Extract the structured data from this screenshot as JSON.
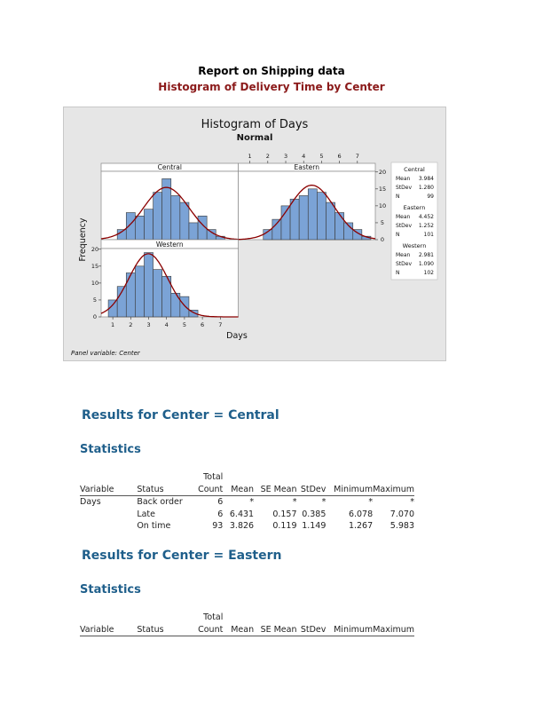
{
  "report": {
    "title": "Report on Shipping data",
    "subtitle": "Histogram of Delivery Time by Center"
  },
  "chart_data": {
    "type": "bar",
    "title": "Histogram of Days",
    "subtitle": "Normal",
    "xlabel": "Days",
    "ylabel": "Frequency",
    "footnote": "Panel variable: Center",
    "xlim": [
      0.35,
      8.0
    ],
    "ylim": [
      0,
      20.2
    ],
    "bin_width": 0.5,
    "xticks": [
      1,
      2,
      3,
      4,
      5,
      6,
      7
    ],
    "yticks": [
      0,
      5,
      10,
      15,
      20
    ],
    "panels": [
      {
        "name": "Central",
        "mean": 3.984,
        "stdev": 1.28,
        "n": 99,
        "mean_label": "3.984",
        "stdev_label": "1.280",
        "n_label": "99",
        "bin_centers": [
          1.5,
          2,
          2.5,
          3,
          3.5,
          4,
          4.5,
          5,
          5.5,
          6,
          6.5,
          7
        ],
        "counts": [
          3,
          8,
          7,
          9,
          14,
          18,
          13,
          11,
          5,
          7,
          3,
          1
        ]
      },
      {
        "name": "Eastern",
        "mean": 4.452,
        "stdev": 1.252,
        "n": 101,
        "mean_label": "4.452",
        "stdev_label": "1.252",
        "n_label": "101",
        "bin_centers": [
          2,
          2.5,
          3,
          3.5,
          4,
          4.5,
          5,
          5.5,
          6,
          6.5,
          7,
          7.5
        ],
        "counts": [
          3,
          6,
          10,
          12,
          13,
          15,
          14,
          11,
          8,
          5,
          3,
          1
        ]
      },
      {
        "name": "Western",
        "mean": 2.981,
        "stdev": 1.09,
        "n": 102,
        "mean_label": "2.981",
        "stdev_label": "1.090",
        "n_label": "102",
        "bin_centers": [
          1,
          1.5,
          2,
          2.5,
          3,
          3.5,
          4,
          4.5,
          5,
          5.5
        ],
        "counts": [
          5,
          9,
          13,
          15,
          19,
          14,
          12,
          7,
          6,
          2
        ]
      }
    ],
    "legend_labels": {
      "mean": "Mean",
      "stdev": "StDev",
      "n": "N"
    },
    "colors": {
      "bar": "#7ba3d6",
      "curve": "#8b0000",
      "bar_edge": "#3a3a3a"
    }
  },
  "sections": [
    {
      "heading": "Results for Center = Central",
      "subheading": "Statistics",
      "columns_top": [
        "",
        "",
        "Total",
        "",
        "",
        "",
        "",
        ""
      ],
      "columns": [
        "Variable",
        "Status",
        "Count",
        "Mean",
        "SE Mean",
        "StDev",
        "Minimum",
        "Maximum"
      ],
      "rows": [
        [
          "Days",
          "Back order",
          "6",
          "*",
          "*",
          "*",
          "*",
          "*"
        ],
        [
          "",
          "Late",
          "6",
          "6.431",
          "0.157",
          "0.385",
          "6.078",
          "7.070"
        ],
        [
          "",
          "On time",
          "93",
          "3.826",
          "0.119",
          "1.149",
          "1.267",
          "5.983"
        ]
      ]
    },
    {
      "heading": "Results for Center = Eastern",
      "subheading": "Statistics",
      "columns_top": [
        "",
        "",
        "Total",
        "",
        "",
        "",
        "",
        ""
      ],
      "columns": [
        "Variable",
        "Status",
        "Count",
        "Mean",
        "SE Mean",
        "StDev",
        "Minimum",
        "Maximum"
      ],
      "rows": []
    }
  ]
}
